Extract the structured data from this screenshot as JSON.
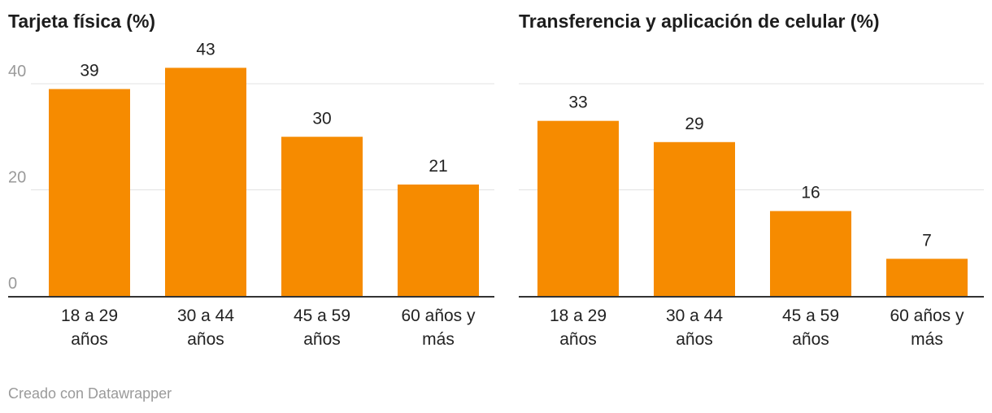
{
  "chart_data": [
    {
      "type": "bar",
      "title": "Tarjeta física (%)",
      "categories": [
        [
          "18 a 29",
          "años"
        ],
        [
          "30 a 44",
          "años"
        ],
        [
          "45 a 59",
          "años"
        ],
        [
          "60 años y",
          "más"
        ]
      ],
      "values": [
        39,
        43,
        30,
        21
      ],
      "ylim": [
        0,
        40
      ],
      "yticks": [
        "0",
        "20",
        "40"
      ],
      "show_ytick_labels": true,
      "color": "#f68b00"
    },
    {
      "type": "bar",
      "title": "Transferencia y aplicación de celular (%)",
      "categories": [
        [
          "18 a 29",
          "años"
        ],
        [
          "30 a 44",
          "años"
        ],
        [
          "45 a 59",
          "años"
        ],
        [
          "60 años y",
          "más"
        ]
      ],
      "values": [
        33,
        29,
        16,
        7
      ],
      "ylim": [
        0,
        40
      ],
      "yticks": [],
      "show_ytick_labels": false,
      "color": "#f68b00"
    }
  ],
  "footer": {
    "credit": "Creado con Datawrapper"
  }
}
